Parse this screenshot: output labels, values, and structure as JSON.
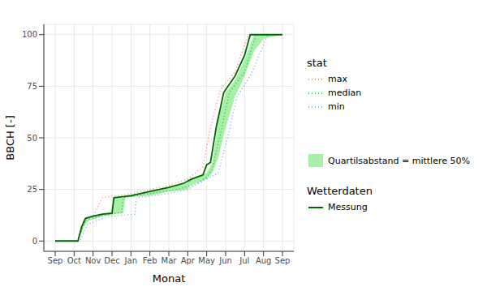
{
  "chart_data": {
    "type": "line",
    "x_label": "Monat",
    "y_label": "BBCH [-]",
    "xlim": [
      -0.6,
      12.6
    ],
    "xticks": [
      {
        "value": 0,
        "label": "Sep"
      },
      {
        "value": 1,
        "label": "Oct"
      },
      {
        "value": 2,
        "label": "Nov"
      },
      {
        "value": 3,
        "label": "Dec"
      },
      {
        "value": 4,
        "label": "Jan"
      },
      {
        "value": 5,
        "label": "Feb"
      },
      {
        "value": 6,
        "label": "Mar"
      },
      {
        "value": 7,
        "label": "Apr"
      },
      {
        "value": 8,
        "label": "May"
      },
      {
        "value": 9,
        "label": "Jun"
      },
      {
        "value": 10,
        "label": "Jul"
      },
      {
        "value": 11,
        "label": "Aug"
      },
      {
        "value": 12,
        "label": "Sep"
      }
    ],
    "ylim": [
      -5,
      105
    ],
    "yticks": [
      0,
      25,
      50,
      75,
      100
    ],
    "grid": true,
    "legend": "right",
    "band": {
      "name": "Quartilsabstand = mittlere 50%",
      "color": "#90ee90",
      "x": [
        0,
        1.2,
        1.5,
        1.8,
        2.5,
        3.0,
        3.1,
        3.6,
        3.7,
        5,
        6,
        7,
        7.1,
        8,
        8.3,
        8.6,
        9,
        9.5,
        10,
        10.5,
        11,
        12
      ],
      "lower": [
        0,
        0,
        7,
        10,
        12,
        12.5,
        13,
        13.5,
        21,
        22,
        24,
        25,
        27,
        30,
        33,
        40,
        55,
        70,
        80,
        92,
        98,
        100
      ],
      "upper": [
        0,
        0,
        9,
        11,
        13,
        13.5,
        21,
        21,
        22,
        24,
        26,
        28,
        30,
        33,
        38,
        58,
        72,
        78,
        88,
        100,
        100,
        100
      ]
    },
    "series": [
      {
        "group": "stat",
        "name": "max",
        "color": "#f8766d",
        "line_style": "dotted",
        "x": [
          0,
          1.2,
          1.5,
          2,
          2.5,
          4,
          5,
          6,
          7,
          7.8,
          8.2,
          8.7,
          9.5,
          10.2,
          12
        ],
        "values": [
          0,
          0,
          10,
          12,
          21,
          23,
          25,
          27,
          30,
          36,
          55,
          73,
          82,
          100,
          100
        ]
      },
      {
        "group": "stat",
        "name": "median",
        "color": "#00ba38",
        "line_style": "dotted",
        "x": [
          0,
          1.2,
          1.6,
          2.3,
          3.5,
          3.6,
          5,
          6.5,
          7.5,
          8,
          8.3,
          8.8,
          9.2,
          10,
          10.6,
          12
        ],
        "values": [
          0,
          0,
          10,
          12,
          14,
          21,
          23,
          25,
          28,
          31,
          35,
          55,
          72,
          82,
          100,
          100
        ]
      },
      {
        "group": "stat",
        "name": "min",
        "color": "#619cff",
        "line_style": "dotted",
        "x": [
          0,
          1.3,
          1.7,
          2.2,
          3,
          4.2,
          4.3,
          6,
          7,
          8,
          8.6,
          9.1,
          9.6,
          10.3,
          11,
          11.2,
          12
        ],
        "values": [
          0,
          0,
          8,
          10,
          12,
          13,
          21,
          23,
          25,
          30,
          33,
          50,
          70,
          80,
          95,
          100,
          100
        ]
      },
      {
        "group": "Wetterdaten",
        "name": "Messung",
        "color": "#006400",
        "line_style": "solid",
        "x": [
          0,
          1.2,
          1.4,
          1.6,
          2.0,
          2.5,
          3.0,
          3.1,
          4,
          5,
          6,
          6.8,
          7.2,
          7.8,
          8.0,
          8.2,
          8.5,
          8.9,
          9.5,
          10.0,
          10.3,
          12
        ],
        "values": [
          0,
          0,
          7,
          11,
          12,
          13,
          13.5,
          21,
          22,
          24,
          26,
          28,
          30,
          32,
          37,
          38,
          55,
          72,
          80,
          90,
          100,
          100
        ]
      }
    ]
  }
}
